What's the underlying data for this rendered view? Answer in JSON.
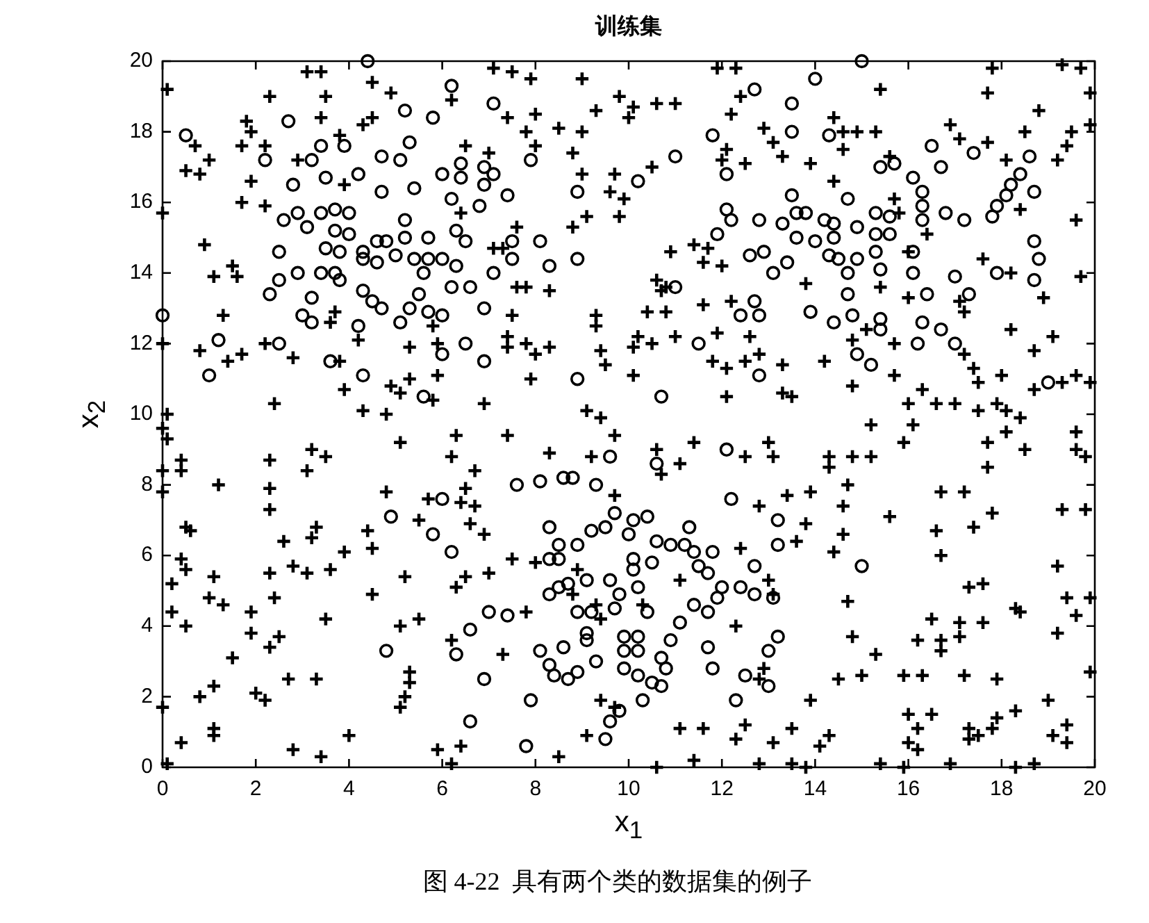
{
  "chart_data": {
    "type": "scatter",
    "title": "训练集",
    "xlabel": "x$_{1}$",
    "ylabel": "x$_{2}$",
    "annotations": [
      "图 4-22  具有两个类的数据集的例子"
    ],
    "xlim": [
      0,
      20
    ],
    "ylim": [
      0,
      20
    ],
    "xticks": [
      0,
      2,
      4,
      6,
      8,
      10,
      12,
      14,
      16,
      18,
      20
    ],
    "yticks": [
      0,
      2,
      4,
      6,
      8,
      10,
      12,
      14,
      16,
      18,
      20
    ],
    "grid": false,
    "legend": false,
    "series": [
      {
        "color": "#000000",
        "marker": "circle",
        "x": [
          4.4,
          6.2,
          0.5,
          2.7,
          5.8,
          5.2,
          3.4,
          3.9,
          2.2,
          3.2,
          4.7,
          5.1,
          5.3,
          4.2,
          3.5,
          6.0,
          6.4,
          6.4,
          4.7,
          5.4,
          2.8,
          6.2,
          2.6,
          2.9,
          3.1,
          3.4,
          3.7,
          4.0,
          3.7,
          4.0,
          2.5,
          3.5,
          3.8,
          4.3,
          4.6,
          4.8,
          5.2,
          5.2,
          5.7,
          6.3,
          6.5,
          4.3,
          4.6,
          5.0,
          5.4,
          5.7,
          6.0,
          6.3,
          5.6,
          3.4,
          3.7,
          3.8,
          2.9,
          2.5,
          2.3,
          3.2,
          4.3,
          4.5,
          4.7,
          5.1,
          5.5,
          5.3,
          6.2,
          6.6,
          3.0,
          3.2,
          4.2,
          5.7,
          6.0,
          6.5,
          6.0,
          0.0,
          1.2,
          2.5,
          1.0,
          3.6,
          4.3,
          5.6,
          7.1,
          12.7,
          11.8,
          11.0,
          10.2,
          12.1,
          6.9,
          7.1,
          6.9,
          7.4,
          6.8,
          7.9,
          8.9,
          13.5,
          13.5,
          13.5,
          12.1,
          12.2,
          11.9,
          12.6,
          12.9,
          13.1,
          13.4,
          12.8,
          13.3,
          7.5,
          7.5,
          8.1,
          8.3,
          8.9,
          7.1,
          6.9,
          6.9,
          8.9,
          11.0,
          12.4,
          12.7,
          12.8,
          11.5,
          12.8,
          10.7,
          15.0,
          14.0,
          14.3,
          16.5,
          17.4,
          18.6,
          16.7,
          15.4,
          15.7,
          16.1,
          18.4,
          18.2,
          18.1,
          17.9,
          17.8,
          18.7,
          14.7,
          16.3,
          16.3,
          16.3,
          16.8,
          17.2,
          14.9,
          15.3,
          15.6,
          13.6,
          13.8,
          14.2,
          14.4,
          13.6,
          14.0,
          14.4,
          15.3,
          15.6,
          16.1,
          15.3,
          14.3,
          14.5,
          14.7,
          14.9,
          15.4,
          16.1,
          16.4,
          17.0,
          17.3,
          14.7,
          13.9,
          14.4,
          14.8,
          15.4,
          15.4,
          16.3,
          16.7,
          17.0,
          16.2,
          14.9,
          15.2,
          18.7,
          18.8,
          18.7,
          17.9,
          19.0,
          4.9,
          5.8,
          6.0,
          6.2,
          4.8,
          6.3,
          6.6,
          6.6,
          9.6,
          10.6,
          12.1,
          7.6,
          8.1,
          8.6,
          8.8,
          9.3,
          12.2,
          8.3,
          9.7,
          10.1,
          10.4,
          9.2,
          9.5,
          8.9,
          10.0,
          10.6,
          10.9,
          11.3,
          11.2,
          8.5,
          8.5,
          8.3,
          9.1,
          8.7,
          8.5,
          8.3,
          9.6,
          10.1,
          10.1,
          10.5,
          10.2,
          9.8,
          9.7,
          10.4,
          9.2,
          8.9,
          9.1,
          9.1,
          11.4,
          11.8,
          11.5,
          11.7,
          12.0,
          12.4,
          12.7,
          12.7,
          13.1,
          11.9,
          11.4,
          11.7,
          11.1,
          10.9,
          9.9,
          10.2,
          9.9,
          10.2,
          9.9,
          10.2,
          10.5,
          10.7,
          10.7,
          10.8,
          11.7,
          11.8,
          13.2,
          13.0,
          13.2,
          13.2,
          12.5,
          13.0,
          12.3,
          8.1,
          8.6,
          8.3,
          8.4,
          8.7,
          8.9,
          9.3,
          6.9,
          7.9,
          7.8,
          9.5,
          9.6,
          9.8,
          10.3,
          7.0,
          7.4,
          15.0
        ],
        "values": [
          20.0,
          19.3,
          17.9,
          18.3,
          18.4,
          18.6,
          17.6,
          17.6,
          17.2,
          17.2,
          17.3,
          17.2,
          17.7,
          16.8,
          16.7,
          16.8,
          17.1,
          16.7,
          16.3,
          16.4,
          16.5,
          16.1,
          15.5,
          15.7,
          15.3,
          15.7,
          15.8,
          15.7,
          15.2,
          15.1,
          14.6,
          14.7,
          14.6,
          14.6,
          14.9,
          14.9,
          15.5,
          15.0,
          15.0,
          15.2,
          14.9,
          14.4,
          14.3,
          14.5,
          14.4,
          14.4,
          14.4,
          14.2,
          14.0,
          14.0,
          14.0,
          13.8,
          14.0,
          13.8,
          13.4,
          13.3,
          13.5,
          13.2,
          13.0,
          12.6,
          13.4,
          13.0,
          13.6,
          13.6,
          12.8,
          12.6,
          12.5,
          12.9,
          12.8,
          12.0,
          11.7,
          12.8,
          12.1,
          12.0,
          11.1,
          11.5,
          11.1,
          10.5,
          18.8,
          19.2,
          17.9,
          17.3,
          16.6,
          16.8,
          17.0,
          16.8,
          16.5,
          16.2,
          15.9,
          17.2,
          16.3,
          18.8,
          18.0,
          16.2,
          15.8,
          15.5,
          15.1,
          14.5,
          14.6,
          14.0,
          14.3,
          15.5,
          15.4,
          14.9,
          14.4,
          14.9,
          14.2,
          14.4,
          14.0,
          13.0,
          11.5,
          11.0,
          13.6,
          12.8,
          13.2,
          12.8,
          12.0,
          11.1,
          10.5,
          20.0,
          19.5,
          17.9,
          17.6,
          17.4,
          17.3,
          17.0,
          17.0,
          17.1,
          16.7,
          16.8,
          16.5,
          16.2,
          15.9,
          15.6,
          16.3,
          16.1,
          16.3,
          15.9,
          15.5,
          15.7,
          15.5,
          15.3,
          15.7,
          15.6,
          15.7,
          15.7,
          15.5,
          15.4,
          15.0,
          14.9,
          15.0,
          15.1,
          15.1,
          14.6,
          14.6,
          14.5,
          14.4,
          14.0,
          14.4,
          14.1,
          14.0,
          13.4,
          13.9,
          13.4,
          13.4,
          12.9,
          12.6,
          12.8,
          12.7,
          12.4,
          12.6,
          12.4,
          12.0,
          12.0,
          11.7,
          11.4,
          14.9,
          14.4,
          13.8,
          14.0,
          10.9,
          7.1,
          6.6,
          7.6,
          6.1,
          3.3,
          3.2,
          3.9,
          1.3,
          8.8,
          8.6,
          9.0,
          8.0,
          8.1,
          8.2,
          8.2,
          8.0,
          7.6,
          6.8,
          7.2,
          7.0,
          7.1,
          6.7,
          6.8,
          6.3,
          6.6,
          6.4,
          6.3,
          6.8,
          6.3,
          6.3,
          5.9,
          5.9,
          5.3,
          5.2,
          5.1,
          4.9,
          5.3,
          5.9,
          5.6,
          5.8,
          5.1,
          4.9,
          4.5,
          4.4,
          4.4,
          4.4,
          3.8,
          3.6,
          6.1,
          6.1,
          5.7,
          5.5,
          5.1,
          5.1,
          5.7,
          4.9,
          4.8,
          4.8,
          4.6,
          4.4,
          4.1,
          3.6,
          3.7,
          3.7,
          3.3,
          3.3,
          2.8,
          2.6,
          2.4,
          2.3,
          3.1,
          2.8,
          3.4,
          2.8,
          3.7,
          3.3,
          7.0,
          6.3,
          2.6,
          2.3,
          1.9,
          3.3,
          3.4,
          2.9,
          2.6,
          2.5,
          2.7,
          3.0,
          2.5,
          1.9,
          0.6,
          0.8,
          1.3,
          1.6,
          1.9,
          4.4,
          4.3,
          5.7
        ]
      },
      {
        "color": "#000000",
        "marker": "cross",
        "x": [
          0.1,
          2.3,
          3.1,
          3.4,
          3.5,
          4.5,
          4.9,
          6.2,
          3.4,
          4.3,
          4.5,
          1.8,
          1.9,
          1.7,
          2.2,
          0.7,
          0.5,
          0.8,
          1.0,
          1.9,
          1.7,
          2.2,
          2.9,
          3.8,
          3.9,
          0.0,
          0.9,
          1.1,
          1.5,
          1.6,
          6.5,
          6.4,
          3.7,
          3.6,
          4.2,
          1.3,
          0.0,
          0.8,
          1.4,
          1.7,
          2.2,
          2.8,
          3.8,
          5.3,
          5.9,
          5.8,
          5.9,
          3.9,
          4.9,
          5.3,
          5.1,
          2.4,
          4.3,
          4.8,
          0.1,
          5.8,
          7.1,
          7.5,
          7.9,
          9.0,
          11.9,
          12.3,
          7.4,
          8.0,
          7.8,
          8.0,
          8.5,
          9.0,
          9.3,
          9.8,
          10.1,
          10.0,
          10.6,
          11.0,
          8.8,
          9.0,
          9.7,
          9.6,
          9.9,
          9.8,
          10.5,
          12.2,
          12.4,
          12.9,
          13.1,
          13.3,
          12.0,
          12.5,
          12.1,
          8.8,
          9.1,
          7.6,
          7.1,
          7.3,
          7.0,
          10.9,
          11.4,
          11.7,
          11.6,
          12.0,
          7.6,
          7.8,
          8.3,
          10.6,
          10.7,
          10.8,
          10.4,
          10.8,
          11.6,
          12.2,
          7.5,
          9.3,
          9.3,
          7.4,
          7.4,
          7.8,
          8.0,
          8.3,
          9.4,
          9.5,
          10.2,
          10.1,
          10.5,
          11.0,
          11.9,
          11.8,
          12.1,
          12.5,
          12.8,
          13.3,
          12.6,
          7.9,
          10.1,
          12.1,
          13.3,
          13.5,
          6.9,
          9.1,
          9.4,
          17.8,
          19.3,
          19.7,
          15.4,
          17.7,
          19.9,
          18.8,
          14.4,
          14.6,
          14.9,
          15.3,
          14.6,
          16.9,
          17.1,
          17.7,
          18.5,
          19.5,
          19.9,
          19.2,
          19.4,
          18.1,
          13.9,
          15.6,
          14.4,
          15.7,
          15.8,
          16.4,
          18.4,
          19.6,
          16.0,
          15.4,
          17.6,
          18.2,
          19.7,
          18.9,
          16.0,
          13.8,
          17.1,
          17.2,
          15.1,
          15.7,
          14.8,
          18.2,
          19.1,
          18.7,
          17.2,
          17.4,
          14.2,
          15.7,
          14.8,
          16.3,
          17.5,
          18.0,
          18.7,
          19.3,
          19.6,
          19.9,
          16.0,
          16.6,
          17.0,
          17.5,
          17.9,
          18.1,
          18.4,
          0.0,
          0.1,
          0.0,
          0.0,
          0.4,
          0.4,
          1.2,
          2.3,
          2.3,
          2.3,
          3.2,
          3.5,
          3.1,
          5.1,
          6.3,
          6.2,
          6.7,
          4.8,
          6.5,
          6.4,
          6.7,
          5.7,
          5.5,
          6.6,
          0.5,
          0.6,
          0.4,
          0.5,
          0.2,
          1.1,
          1.0,
          1.3,
          0.2,
          0.5,
          2.6,
          3.3,
          3.2,
          2.8,
          3.1,
          2.3,
          3.6,
          3.9,
          4.4,
          4.5,
          5.2,
          4.5,
          2.4,
          1.9,
          1.9,
          1.5,
          2.3,
          2.5,
          3.5,
          5.1,
          5.5,
          6.3,
          6.5,
          6.2,
          5.3,
          5.3,
          5.1,
          5.2,
          2.7,
          3.3,
          2.0,
          2.2,
          0.8,
          1.1,
          0.0,
          1.1,
          1.1,
          0.4,
          2.8,
          3.4,
          4.0,
          5.9,
          6.4,
          6.2,
          0.1,
          7.4,
          8.3,
          9.7,
          9.2,
          10.6,
          10.7,
          11.1,
          11.4,
          12.5,
          13.0,
          13.1,
          9.7,
          6.9,
          7.5,
          8.0,
          7.0,
          13.4,
          12.8,
          12.4,
          11.1,
          8.9,
          8.8,
          9.3,
          9.4,
          10.3,
          7.8,
          12.3,
          13.0,
          13.1,
          7.3,
          12.8,
          12.9,
          9.4,
          9.7,
          9.1,
          11.1,
          11.6,
          12.5,
          12.3,
          13.1,
          13.5,
          8.5,
          11.4,
          10.6,
          12.8,
          13.5,
          15.2,
          16.1,
          15.9,
          18.1,
          17.7,
          17.7,
          18.5,
          19.6,
          19.6,
          19.8,
          14.3,
          14.3,
          14.8,
          15.2,
          13.9,
          14.7,
          14.6,
          15.6,
          16.7,
          17.2,
          17.8,
          16.6,
          16.7,
          17.4,
          19.3,
          19.8,
          13.8,
          13.6,
          14.6,
          14.4,
          14.7,
          17.3,
          17.6,
          18.3,
          18.4,
          19.2,
          19.4,
          19.9,
          16.5,
          17.1,
          17.1,
          17.6,
          16.2,
          16.7,
          16.7,
          14.8,
          15.3,
          19.2,
          19.6,
          14.5,
          15.0,
          15.9,
          16.3,
          17.2,
          17.9,
          19.9,
          13.9,
          14.1,
          14.3,
          16.0,
          16.2,
          16.0,
          16.2,
          16.5,
          17.3,
          17.3,
          17.5,
          17.8,
          17.9,
          18.3,
          19.0,
          19.1,
          19.4,
          19.4,
          15.4,
          15.9,
          16.9,
          18.3,
          18.7,
          13.8
        ],
        "values": [
          19.2,
          19.0,
          19.7,
          19.7,
          19.0,
          19.4,
          19.1,
          18.9,
          18.4,
          18.2,
          18.4,
          18.3,
          18.0,
          17.6,
          17.6,
          17.6,
          16.9,
          16.8,
          17.2,
          16.6,
          16.0,
          15.9,
          17.2,
          17.9,
          16.5,
          15.7,
          14.8,
          13.9,
          14.2,
          13.9,
          17.6,
          15.7,
          12.9,
          12.6,
          12.1,
          12.8,
          12.0,
          11.8,
          11.5,
          11.7,
          12.0,
          11.6,
          11.5,
          11.9,
          12.0,
          12.5,
          11.1,
          10.7,
          10.8,
          11.0,
          10.6,
          10.3,
          10.1,
          10.0,
          10.0,
          10.4,
          19.8,
          19.7,
          19.5,
          19.5,
          19.8,
          19.8,
          18.4,
          18.5,
          18.0,
          17.6,
          18.1,
          18.0,
          18.6,
          19.0,
          18.7,
          18.4,
          18.8,
          18.8,
          17.4,
          16.8,
          16.8,
          16.3,
          16.1,
          15.6,
          17.0,
          18.5,
          19.0,
          18.1,
          17.7,
          17.3,
          17.2,
          17.1,
          17.5,
          15.3,
          15.6,
          15.3,
          14.7,
          14.7,
          17.4,
          14.6,
          14.8,
          14.7,
          14.3,
          14.2,
          13.6,
          13.6,
          13.5,
          13.8,
          13.5,
          13.6,
          12.9,
          12.9,
          13.1,
          13.2,
          12.8,
          12.8,
          12.5,
          12.2,
          11.9,
          12.0,
          11.7,
          11.9,
          11.8,
          11.4,
          12.2,
          11.9,
          12.0,
          12.2,
          12.3,
          11.5,
          11.3,
          11.5,
          11.7,
          11.4,
          12.2,
          11.0,
          11.1,
          10.5,
          10.6,
          10.5,
          10.3,
          10.1,
          9.9,
          19.8,
          19.9,
          19.8,
          19.2,
          19.1,
          19.1,
          18.6,
          18.4,
          18.0,
          18.0,
          18.0,
          17.5,
          18.2,
          17.8,
          17.7,
          18.0,
          18.0,
          18.2,
          17.2,
          17.6,
          17.2,
          17.1,
          17.3,
          16.6,
          16.1,
          15.7,
          15.1,
          15.8,
          15.5,
          14.6,
          13.6,
          14.4,
          14.0,
          13.9,
          13.3,
          13.3,
          13.7,
          13.2,
          12.9,
          12.4,
          12.0,
          12.1,
          12.4,
          12.2,
          11.8,
          11.7,
          11.3,
          11.5,
          11.1,
          10.8,
          10.7,
          10.9,
          11.1,
          10.7,
          10.9,
          11.1,
          10.9,
          10.3,
          10.3,
          10.3,
          10.1,
          10.3,
          10.1,
          9.9,
          9.6,
          9.3,
          8.4,
          7.8,
          8.7,
          8.4,
          8.0,
          8.7,
          7.9,
          7.3,
          9.0,
          8.8,
          8.4,
          9.2,
          9.4,
          8.8,
          8.4,
          7.8,
          7.9,
          7.5,
          7.4,
          7.6,
          7.0,
          6.9,
          6.8,
          6.7,
          5.9,
          5.6,
          5.2,
          5.4,
          4.8,
          4.6,
          4.4,
          4.0,
          6.4,
          6.8,
          6.5,
          5.7,
          5.5,
          5.5,
          5.6,
          6.1,
          6.7,
          6.2,
          5.4,
          4.9,
          4.8,
          4.4,
          3.8,
          3.1,
          3.4,
          3.7,
          4.2,
          4.0,
          4.2,
          5.1,
          5.4,
          3.6,
          2.7,
          2.4,
          1.7,
          2.0,
          2.5,
          2.5,
          2.1,
          1.9,
          2.0,
          2.3,
          1.7,
          1.1,
          0.9,
          0.7,
          0.5,
          0.3,
          0.9,
          0.5,
          0.6,
          0.1,
          0.1,
          9.4,
          8.9,
          9.4,
          8.8,
          9.0,
          8.3,
          8.6,
          9.2,
          8.8,
          9.2,
          8.8,
          7.7,
          6.6,
          5.9,
          5.8,
          5.5,
          7.7,
          7.4,
          6.2,
          5.3,
          5.6,
          4.9,
          4.6,
          4.2,
          4.6,
          4.4,
          4.0,
          5.3,
          4.9,
          3.2,
          2.5,
          2.8,
          1.9,
          1.7,
          0.9,
          1.1,
          1.1,
          1.2,
          0.8,
          0.7,
          1.1,
          0.3,
          0.2,
          0.0,
          0.1,
          0.1,
          9.7,
          9.7,
          9.2,
          9.5,
          9.2,
          8.5,
          9.0,
          9.5,
          9.0,
          8.8,
          8.8,
          8.5,
          8.8,
          8.8,
          7.8,
          8.0,
          7.4,
          7.1,
          7.8,
          7.8,
          7.2,
          6.7,
          6.0,
          6.8,
          7.3,
          7.3,
          6.9,
          6.4,
          6.6,
          6.1,
          4.7,
          5.1,
          5.2,
          4.5,
          4.4,
          5.7,
          4.8,
          4.8,
          4.2,
          4.1,
          3.7,
          4.1,
          3.6,
          3.6,
          3.3,
          3.7,
          3.2,
          3.8,
          4.3,
          2.5,
          2.6,
          2.6,
          2.6,
          2.6,
          2.5,
          2.7,
          1.9,
          0.6,
          0.9,
          1.5,
          1.1,
          0.7,
          0.5,
          1.5,
          1.1,
          0.8,
          0.9,
          1.1,
          1.4,
          1.6,
          1.9,
          0.9,
          1.2,
          0.7,
          0.1,
          0.0,
          0.1,
          0.0,
          0.1,
          0.0
        ]
      }
    ]
  }
}
